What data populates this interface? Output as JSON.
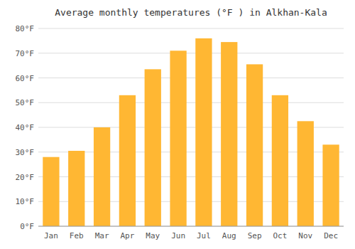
{
  "chart_data": {
    "type": "bar",
    "title": "Average monthly temperatures (°F ) in Alkhan-Kala",
    "categories": [
      "Jan",
      "Feb",
      "Mar",
      "Apr",
      "May",
      "Jun",
      "Jul",
      "Aug",
      "Sep",
      "Oct",
      "Nov",
      "Dec"
    ],
    "values": [
      28,
      30.5,
      40,
      53,
      63.5,
      71,
      76,
      74.5,
      65.5,
      53,
      42.5,
      33
    ],
    "color": "#FFB733",
    "ylim": [
      0,
      80
    ],
    "yticks": [
      {
        "value": 0,
        "label": "0°F"
      },
      {
        "value": 10,
        "label": "10°F"
      },
      {
        "value": 20,
        "label": "20°F"
      },
      {
        "value": 30,
        "label": "30°F"
      },
      {
        "value": 40,
        "label": "40°F"
      },
      {
        "value": 50,
        "label": "50°F"
      },
      {
        "value": 60,
        "label": "60°F"
      },
      {
        "value": 70,
        "label": "70°F"
      },
      {
        "value": 80,
        "label": "80°F"
      }
    ],
    "grid": true
  }
}
